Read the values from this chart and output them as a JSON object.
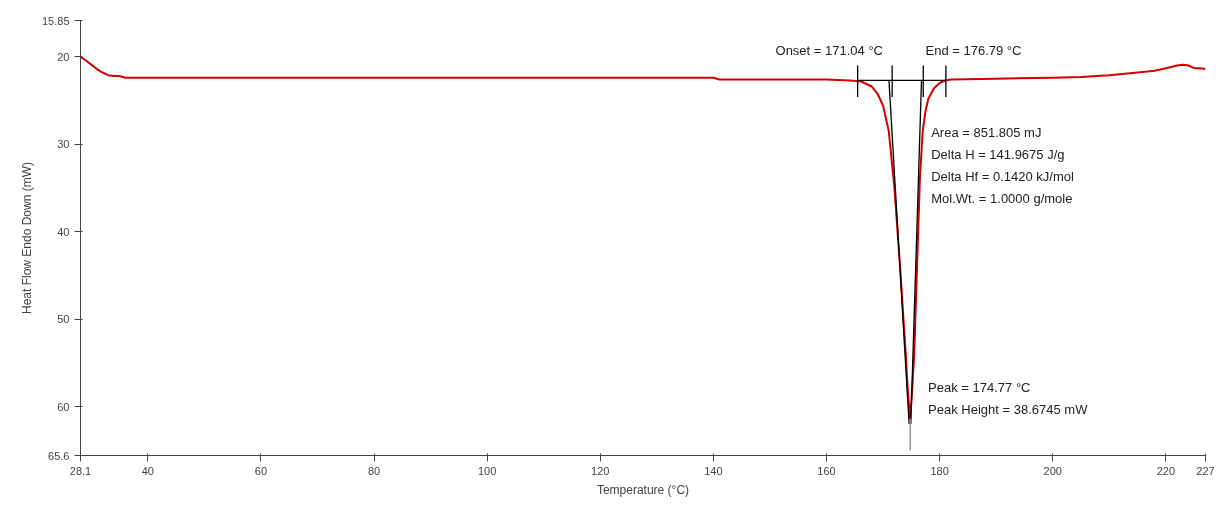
{
  "chart_data": {
    "type": "line",
    "xlabel": "Temperature (°C)",
    "ylabel": "Heat Flow Endo Down (mW)",
    "xlim": [
      28.1,
      227
    ],
    "xticks": [
      28.1,
      40,
      60,
      80,
      100,
      120,
      140,
      160,
      180,
      200,
      220,
      227
    ],
    "ylim": [
      65.6,
      15.85
    ],
    "yticks": [
      15.85,
      20,
      30,
      40,
      50,
      60,
      65.6
    ],
    "grid": false,
    "marker": "none",
    "line_style": "solid",
    "series": [
      {
        "color": "#d40000",
        "x": [
          28.1,
          29,
          30,
          31,
          32,
          33,
          34,
          35,
          36,
          40,
          60,
          80,
          100,
          120,
          140,
          141,
          150,
          160,
          164,
          166,
          168,
          169,
          170,
          171,
          172,
          173,
          174,
          174.4,
          174.77,
          175.1,
          175.5,
          176,
          176.5,
          177,
          177.5,
          178,
          179,
          180,
          181,
          182,
          190,
          200,
          205,
          210,
          215,
          218,
          220,
          222,
          223,
          224,
          225,
          226,
          227
        ],
        "values": [
          20.0,
          20.4,
          20.9,
          21.4,
          21.8,
          22.1,
          22.2,
          22.2,
          22.4,
          22.4,
          22.4,
          22.4,
          22.4,
          22.4,
          22.4,
          22.6,
          22.6,
          22.6,
          22.7,
          22.8,
          23.4,
          24.2,
          25.6,
          28.5,
          35,
          44,
          54,
          58.5,
          61.4,
          58.5,
          54,
          44,
          34,
          28.5,
          26.2,
          24.8,
          23.6,
          23.0,
          22.7,
          22.6,
          22.5,
          22.4,
          22.3,
          22.1,
          21.8,
          21.6,
          21.3,
          21.0,
          20.9,
          21.0,
          21.3,
          21.3,
          21.4
        ]
      },
      {
        "color": "#000000",
        "x": [
          165.5,
          181.1
        ],
        "values": [
          22.7,
          22.7
        ]
      },
      {
        "color": "#000000",
        "x": [
          171.04,
          174.6
        ],
        "values": [
          22.7,
          62.0
        ]
      },
      {
        "color": "#000000",
        "x": [
          176.79,
          174.9
        ],
        "values": [
          22.7,
          62.0
        ]
      },
      {
        "color": "#000000",
        "x": [
          165.5,
          165.5
        ],
        "values": [
          21.0,
          24.6
        ]
      },
      {
        "color": "#000000",
        "x": [
          171.6,
          171.6
        ],
        "values": [
          21.0,
          24.6
        ]
      },
      {
        "color": "#000000",
        "x": [
          177.1,
          177.1
        ],
        "values": [
          21.0,
          24.6
        ]
      },
      {
        "color": "#000000",
        "x": [
          181.1,
          181.1
        ],
        "values": [
          21.0,
          24.6
        ]
      },
      {
        "color": "#888888",
        "x": [
          174.8,
          174.8
        ],
        "values": [
          61.4,
          65.0
        ]
      }
    ],
    "annotations": [
      {
        "text": "Onset = 171.04 °C",
        "x": 171.04,
        "y": 22.7
      },
      {
        "text": "End = 176.79 °C",
        "x": 176.79,
        "y": 22.7
      },
      "Area = 851.805 mJ",
      "Delta H = 141.9675 J/g",
      "Delta Hf = 0.1420 kJ/mol",
      "Mol.Wt. = 1.0000 g/mole",
      {
        "text": "Peak = 174.77 °C",
        "x": 174.77,
        "y": 61.4
      },
      "Peak Height = 38.6745 mW"
    ]
  }
}
